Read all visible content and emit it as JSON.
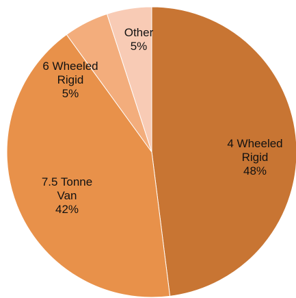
{
  "chart_data": {
    "type": "pie",
    "categories": [
      "4 Wheeled Rigid",
      "7.5 Tonne Van",
      "6 Wheeled Rigid",
      "Other"
    ],
    "values": [
      48,
      42,
      5,
      5
    ],
    "value_labels": [
      "48%",
      "42%",
      "5%",
      "5%"
    ],
    "colors": [
      "#c87533",
      "#e8914a",
      "#f3ad7c",
      "#f8cbb5"
    ]
  }
}
